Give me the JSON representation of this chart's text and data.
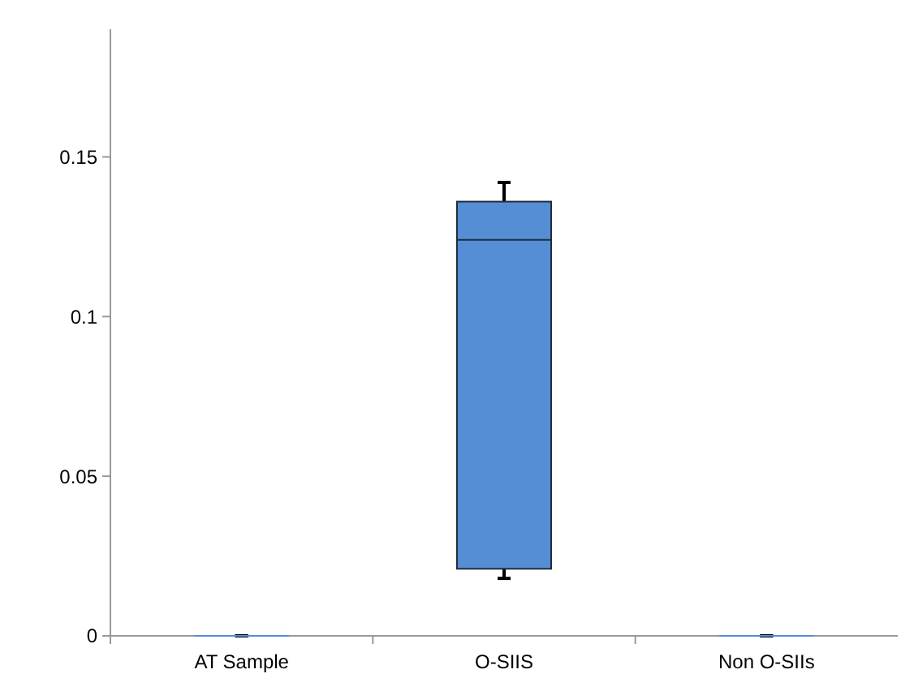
{
  "chart_data": {
    "type": "box",
    "categories": [
      "AT Sample",
      "O-SIIS",
      "Non O-SIIs"
    ],
    "color": "#558ed5",
    "boxes": [
      {
        "low": 0,
        "q1": 0,
        "median": 0,
        "q3": 0,
        "high": 0
      },
      {
        "low": 0.018,
        "q1": 0.021,
        "median": 0.124,
        "q3": 0.136,
        "high": 0.142
      },
      {
        "low": 0,
        "q1": 0,
        "median": 0,
        "q3": 0,
        "high": 0
      }
    ],
    "ylim": [
      0,
      0.19
    ],
    "yticks": [
      0,
      0.05,
      0.1,
      0.15
    ],
    "grid": false
  }
}
